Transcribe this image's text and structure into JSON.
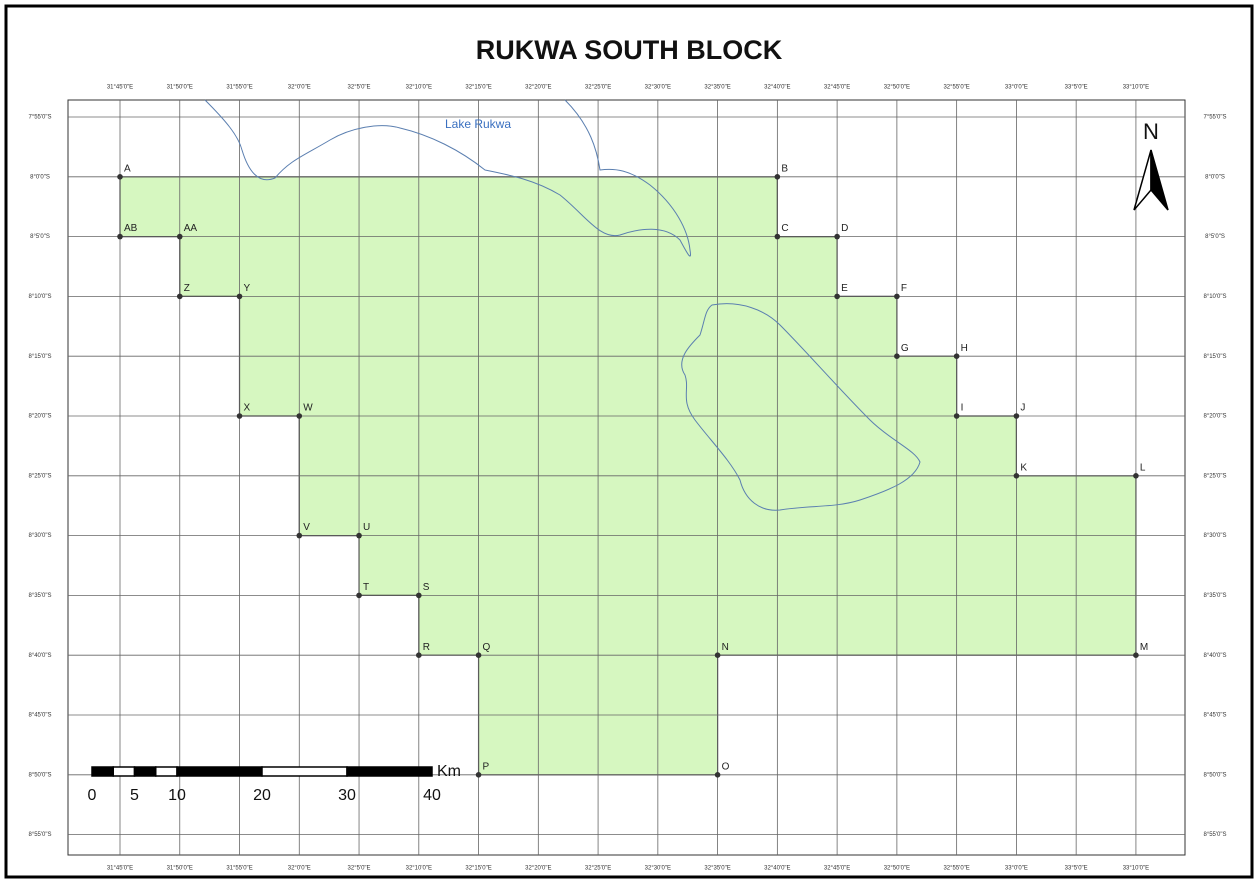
{
  "title": "RUKWA SOUTH BLOCK",
  "lake_label": "Lake Rukwa",
  "north": "N",
  "longitudes": [
    "31°45'0\"E",
    "31°50'0\"E",
    "31°55'0\"E",
    "32°0'0\"E",
    "32°5'0\"E",
    "32°10'0\"E",
    "32°15'0\"E",
    "32°20'0\"E",
    "32°25'0\"E",
    "32°30'0\"E",
    "32°35'0\"E",
    "32°40'0\"E",
    "32°45'0\"E",
    "32°50'0\"E",
    "32°55'0\"E",
    "33°0'0\"E",
    "33°5'0\"E",
    "33°10'0\"E"
  ],
  "latitudes": [
    "7°55'0\"S",
    "8°0'0\"S",
    "8°5'0\"S",
    "8°10'0\"S",
    "8°15'0\"S",
    "8°20'0\"S",
    "8°25'0\"S",
    "8°30'0\"S",
    "8°35'0\"S",
    "8°40'0\"S",
    "8°45'0\"S",
    "8°50'0\"S",
    "8°55'0\"S"
  ],
  "points": [
    "A",
    "B",
    "C",
    "D",
    "E",
    "F",
    "G",
    "H",
    "I",
    "J",
    "K",
    "L",
    "M",
    "N",
    "O",
    "P",
    "Q",
    "R",
    "S",
    "T",
    "U",
    "V",
    "W",
    "X",
    "Y",
    "Z",
    "AA",
    "AB"
  ],
  "scale_bar": {
    "unit": "Km",
    "labels": [
      "0",
      "5",
      "10",
      "20",
      "30",
      "40"
    ]
  }
}
